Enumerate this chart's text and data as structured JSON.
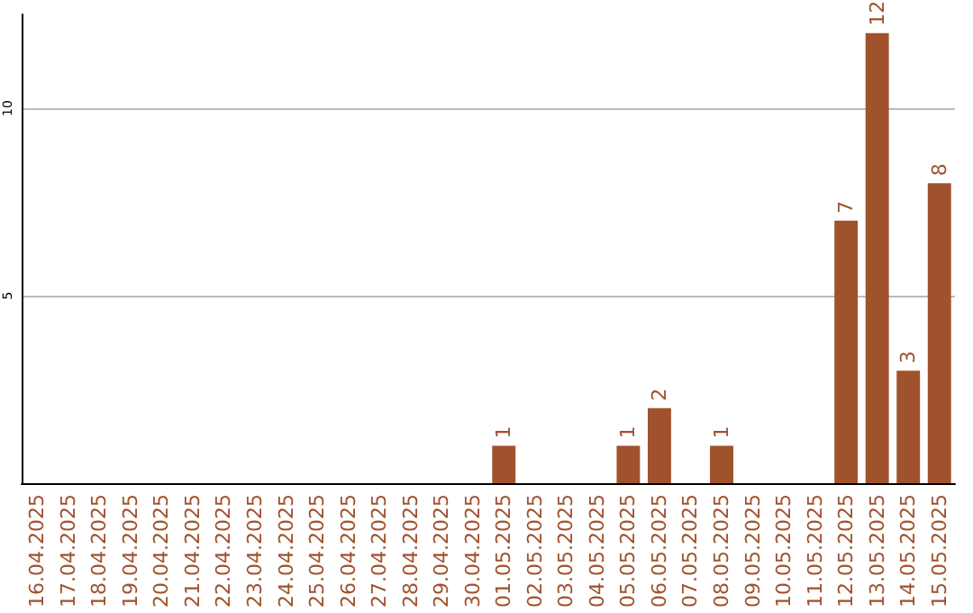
{
  "chart_data": {
    "type": "bar",
    "categories": [
      "16.04.2025",
      "17.04.2025",
      "18.04.2025",
      "19.04.2025",
      "20.04.2025",
      "21.04.2025",
      "22.04.2025",
      "23.04.2025",
      "24.04.2025",
      "25.04.2025",
      "26.04.2025",
      "27.04.2025",
      "28.04.2025",
      "29.04.2025",
      "30.04.2025",
      "01.05.2025",
      "02.05.2025",
      "03.05.2025",
      "04.05.2025",
      "05.05.2025",
      "06.05.2025",
      "07.05.2025",
      "08.05.2025",
      "09.05.2025",
      "10.05.2025",
      "11.05.2025",
      "12.05.2025",
      "13.05.2025",
      "14.05.2025",
      "15.05.2025"
    ],
    "values": [
      0,
      0,
      0,
      0,
      0,
      0,
      0,
      0,
      0,
      0,
      0,
      0,
      0,
      0,
      0,
      1,
      0,
      0,
      0,
      1,
      2,
      0,
      1,
      0,
      0,
      0,
      7,
      12,
      3,
      8
    ],
    "color": "#a0522d",
    "value_labels": [
      null,
      null,
      null,
      null,
      null,
      null,
      null,
      null,
      null,
      null,
      null,
      null,
      null,
      null,
      null,
      "1",
      null,
      null,
      null,
      "1",
      "2",
      null,
      "1",
      null,
      null,
      null,
      "7",
      "12",
      "3",
      "8"
    ],
    "ylim": [
      0,
      12.5
    ],
    "yticks": [
      5,
      10
    ],
    "grid": "y"
  }
}
